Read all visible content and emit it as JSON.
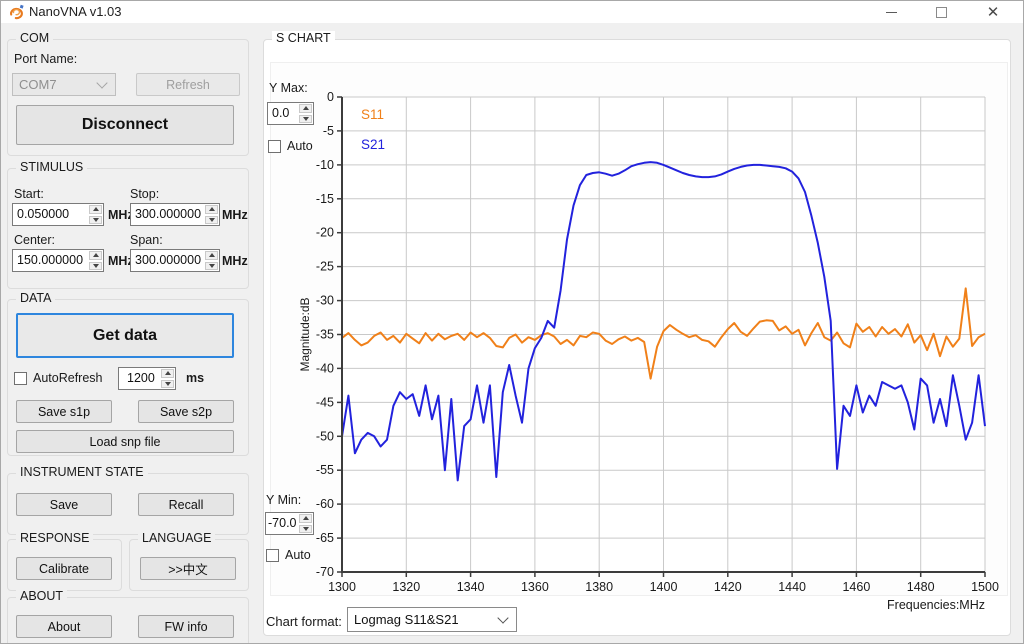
{
  "window": {
    "title": "NanoVNA v1.03",
    "close_glyph": "✕"
  },
  "com": {
    "caption": "COM",
    "port_name_label": "Port Name:",
    "port_value": "COM7",
    "refresh_label": "Refresh",
    "disconnect_label": "Disconnect"
  },
  "stimulus": {
    "caption": "STIMULUS",
    "start_label": "Start:",
    "start_value": "0.050000",
    "stop_label": "Stop:",
    "stop_value": "300.000000",
    "center_label": "Center:",
    "center_value": "150.000000",
    "span_label": "Span:",
    "span_value": "300.000000",
    "unit": "MHz"
  },
  "data_group": {
    "caption": "DATA",
    "get_data_label": "Get data",
    "autorefresh_label": "AutoRefresh",
    "interval_value": "1200",
    "interval_unit": "ms",
    "save_s1p_label": "Save s1p",
    "save_s2p_label": "Save s2p",
    "load_snp_label": "Load snp file"
  },
  "instrument_state": {
    "caption": "INSTRUMENT STATE",
    "save_label": "Save",
    "recall_label": "Recall"
  },
  "response": {
    "caption": "RESPONSE",
    "calibrate_label": "Calibrate"
  },
  "language": {
    "caption": "LANGUAGE",
    "button_label": ">>中文"
  },
  "about": {
    "caption": "ABOUT",
    "about_label": "About",
    "fw_info_label": "FW info"
  },
  "s_chart": {
    "caption": "S CHART",
    "y_max_label": "Y Max:",
    "y_max_value": "0.0",
    "y_min_label": "Y Min:",
    "y_min_value": "-70.0",
    "auto_label": "Auto",
    "chart_format_label": "Chart format:",
    "chart_format_value": "Logmag S11&S21"
  },
  "chart_data": {
    "type": "line",
    "xlabel": "Frequencies:MHz",
    "ylabel": "Magnitude:dB",
    "xlim": [
      1300,
      1500
    ],
    "ylim": [
      -70,
      0
    ],
    "x_ticks": [
      1300,
      1320,
      1340,
      1360,
      1380,
      1400,
      1420,
      1440,
      1460,
      1480,
      1500
    ],
    "y_ticks": [
      0,
      -5,
      -10,
      -15,
      -20,
      -25,
      -30,
      -35,
      -40,
      -45,
      -50,
      -55,
      -60,
      -65,
      -70
    ],
    "grid": true,
    "legend_position": "top-left-inside",
    "grid_color": "#c9c9c9",
    "axis_color": "#3c3c3c",
    "x": [
      1300,
      1302,
      1304,
      1306,
      1308,
      1310,
      1312,
      1314,
      1316,
      1318,
      1320,
      1322,
      1324,
      1326,
      1328,
      1330,
      1332,
      1334,
      1336,
      1338,
      1340,
      1342,
      1344,
      1346,
      1348,
      1350,
      1352,
      1354,
      1356,
      1358,
      1360,
      1362,
      1364,
      1366,
      1368,
      1370,
      1372,
      1374,
      1376,
      1378,
      1380,
      1382,
      1384,
      1386,
      1388,
      1390,
      1392,
      1394,
      1396,
      1398,
      1400,
      1402,
      1404,
      1406,
      1408,
      1410,
      1412,
      1414,
      1416,
      1418,
      1420,
      1422,
      1424,
      1426,
      1428,
      1430,
      1432,
      1434,
      1436,
      1438,
      1440,
      1442,
      1444,
      1446,
      1448,
      1450,
      1452,
      1454,
      1456,
      1458,
      1460,
      1462,
      1464,
      1466,
      1468,
      1470,
      1472,
      1474,
      1476,
      1478,
      1480,
      1482,
      1484,
      1486,
      1488,
      1490,
      1492,
      1494,
      1496,
      1498,
      1500
    ],
    "series": [
      {
        "name": "S11",
        "color": "#F08019",
        "values": [
          -35.5,
          -34.8,
          -35.8,
          -36.6,
          -36.2,
          -35.2,
          -34.7,
          -35.8,
          -35.2,
          -36.2,
          -34.9,
          -35.6,
          -36.3,
          -34.8,
          -35.9,
          -34.9,
          -35.7,
          -35.2,
          -34.9,
          -35.8,
          -34.7,
          -35.4,
          -34.8,
          -35.5,
          -36.7,
          -36.9,
          -35.5,
          -35.0,
          -36.2,
          -35.4,
          -35.8,
          -35.1,
          -34.8,
          -35.3,
          -36.4,
          -35.8,
          -36.6,
          -35.2,
          -35.4,
          -34.7,
          -34.9,
          -35.9,
          -36.4,
          -35.7,
          -35.3,
          -35.9,
          -35.5,
          -36.1,
          -41.5,
          -36.8,
          -34.5,
          -33.6,
          -34.3,
          -34.9,
          -35.4,
          -35.1,
          -35.8,
          -36.0,
          -36.8,
          -35.4,
          -34.2,
          -33.3,
          -34.6,
          -35.2,
          -34.1,
          -33.1,
          -32.9,
          -33.0,
          -34.4,
          -33.8,
          -34.9,
          -34.3,
          -36.6,
          -34.8,
          -33.3,
          -35.4,
          -35.9,
          -34.7,
          -36.3,
          -36.9,
          -33.4,
          -34.6,
          -33.9,
          -35.3,
          -33.9,
          -34.9,
          -34.2,
          -35.3,
          -33.5,
          -36.2,
          -35.1,
          -37.3,
          -34.9,
          -38.2,
          -35.3,
          -36.8,
          -35.6,
          -28.2,
          -36.7,
          -35.4,
          -34.9
        ]
      },
      {
        "name": "S21",
        "color": "#2222DD",
        "values": [
          -50.0,
          -44.0,
          -52.5,
          -50.5,
          -49.5,
          -50.0,
          -51.5,
          -50.5,
          -45.5,
          -43.5,
          -44.5,
          -43.8,
          -47.0,
          -42.5,
          -47.5,
          -44.0,
          -55.0,
          -44.5,
          -56.5,
          -48.5,
          -47.5,
          -42.5,
          -48.0,
          -42.5,
          -56.0,
          -43.5,
          -39.5,
          -44.0,
          -48.0,
          -40.0,
          -37.0,
          -35.5,
          -33.0,
          -34.0,
          -28.5,
          -21.0,
          -16.0,
          -13.0,
          -11.5,
          -11.2,
          -11.1,
          -11.3,
          -11.6,
          -11.3,
          -10.8,
          -10.2,
          -9.9,
          -9.7,
          -9.6,
          -9.7,
          -10.0,
          -10.4,
          -10.8,
          -11.2,
          -11.5,
          -11.7,
          -11.8,
          -11.8,
          -11.7,
          -11.4,
          -11.0,
          -10.6,
          -10.3,
          -10.1,
          -10.0,
          -10.0,
          -10.1,
          -10.2,
          -10.3,
          -10.5,
          -11.0,
          -12.0,
          -14.0,
          -17.5,
          -21.5,
          -26.5,
          -33.0,
          -54.8,
          -45.5,
          -47.0,
          -42.5,
          -46.5,
          -44.0,
          -45.5,
          -42.0,
          -42.5,
          -43.0,
          -42.5,
          -45.0,
          -49.0,
          -41.5,
          -42.5,
          -48.0,
          -44.5,
          -48.5,
          -41.0,
          -45.5,
          -50.5,
          -48.0,
          -41.0,
          -48.5
        ]
      }
    ]
  }
}
